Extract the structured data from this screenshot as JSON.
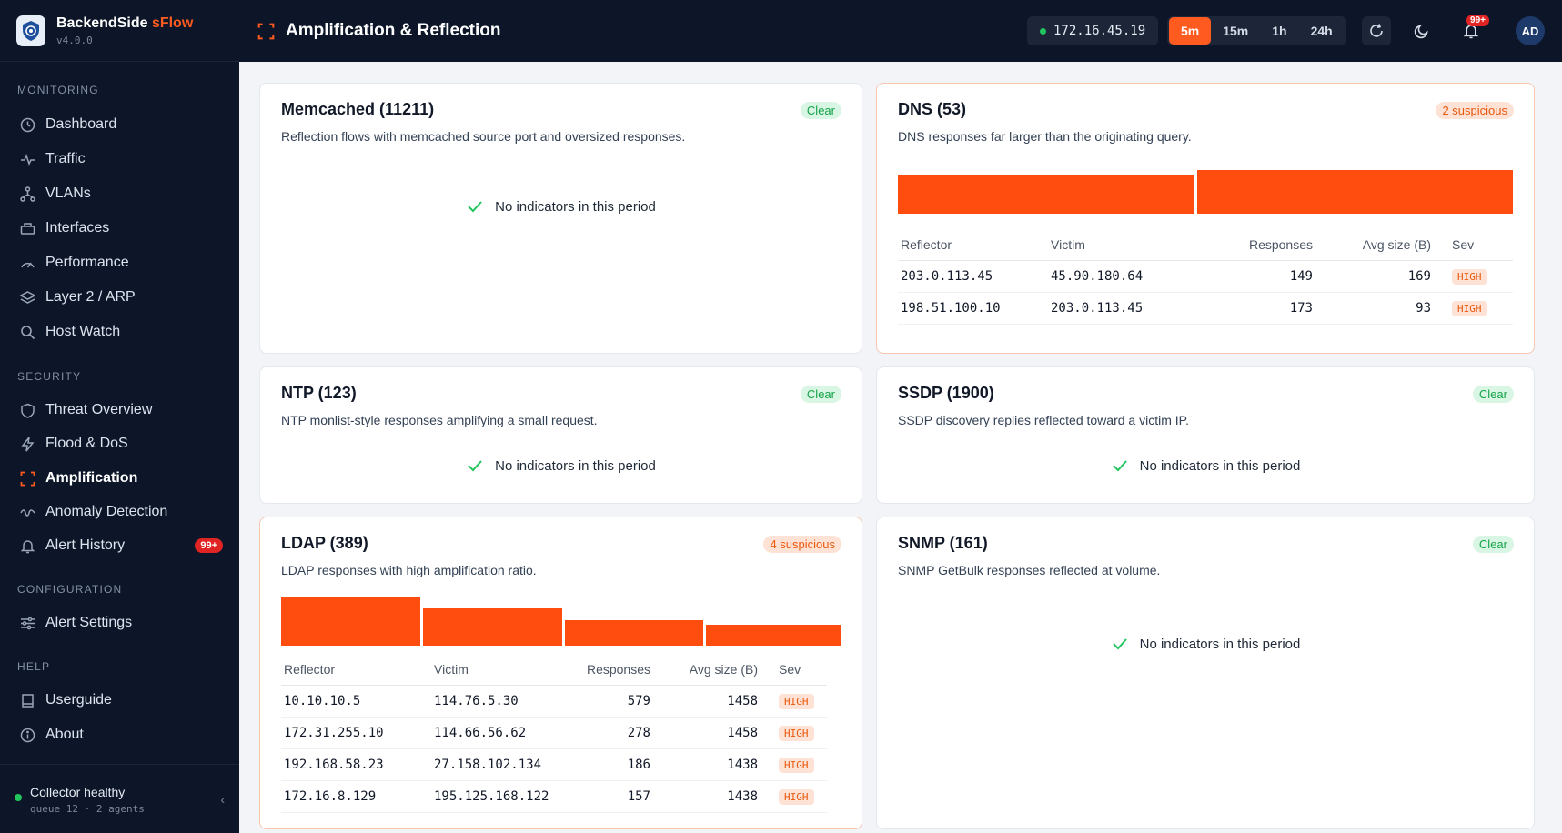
{
  "brand": {
    "name": "BackendSide",
    "accent": "sFlow",
    "version": "v4.0.0"
  },
  "sections": {
    "monitoring": "MONITORING",
    "security": "SECURITY",
    "configuration": "CONFIGURATION",
    "help": "HELP"
  },
  "nav": {
    "dashboard": "Dashboard",
    "traffic": "Traffic",
    "vlans": "VLANs",
    "interfaces": "Interfaces",
    "performance": "Performance",
    "layer2": "Layer 2 / ARP",
    "hostwatch": "Host Watch",
    "threat": "Threat Overview",
    "flood": "Flood & DoS",
    "amplification": "Amplification",
    "anomaly": "Anomaly Detection",
    "alerthistory": "Alert History",
    "alerthistory_badge": "99+",
    "alertsettings": "Alert Settings",
    "userguide": "Userguide",
    "about": "About"
  },
  "footer": {
    "title": "Collector healthy",
    "sub": "queue 12 · 2 agents"
  },
  "header": {
    "title": "Amplification & Reflection",
    "ip": "172.16.45.19",
    "ranges": [
      "5m",
      "15m",
      "1h",
      "24h"
    ],
    "active_range": "5m",
    "notif_badge": "99+",
    "avatar": "AD"
  },
  "empty_text": "No indicators in this period",
  "table_headers": {
    "reflector": "Reflector",
    "victim": "Victim",
    "responses": "Responses",
    "avg": "Avg size (B)",
    "sev": "Sev"
  },
  "cards": {
    "memcached": {
      "title": "Memcached (11211)",
      "desc": "Reflection flows with memcached source port and oversized responses.",
      "badge": "Clear"
    },
    "dns": {
      "title": "DNS (53)",
      "desc": "DNS responses far larger than the originating query.",
      "badge": "2 suspicious",
      "rows": [
        {
          "reflector": "203.0.113.45",
          "victim": "45.90.180.64",
          "responses": "149",
          "avg": "169",
          "sev": "HIGH"
        },
        {
          "reflector": "198.51.100.10",
          "victim": "203.0.113.45",
          "responses": "173",
          "avg": "93",
          "sev": "HIGH"
        }
      ]
    },
    "ntp": {
      "title": "NTP (123)",
      "desc": "NTP monlist-style responses amplifying a small request.",
      "badge": "Clear"
    },
    "ssdp": {
      "title": "SSDP (1900)",
      "desc": "SSDP discovery replies reflected toward a victim IP.",
      "badge": "Clear"
    },
    "ldap": {
      "title": "LDAP (389)",
      "desc": "LDAP responses with high amplification ratio.",
      "badge": "4 suspicious",
      "rows": [
        {
          "reflector": "10.10.10.5",
          "victim": "114.76.5.30",
          "responses": "579",
          "avg": "1458",
          "sev": "HIGH"
        },
        {
          "reflector": "172.31.255.10",
          "victim": "114.66.56.62",
          "responses": "278",
          "avg": "1458",
          "sev": "HIGH"
        },
        {
          "reflector": "192.168.58.23",
          "victim": "27.158.102.134",
          "responses": "186",
          "avg": "1438",
          "sev": "HIGH"
        },
        {
          "reflector": "172.16.8.129",
          "victim": "195.125.168.122",
          "responses": "157",
          "avg": "1438",
          "sev": "HIGH"
        }
      ]
    },
    "snmp": {
      "title": "SNMP (161)",
      "desc": "SNMP GetBulk responses reflected at volume.",
      "badge": "Clear"
    }
  },
  "colors": {
    "accent": "#ff5a1f",
    "bar": "#ff4d0f",
    "ok": "#22c55e",
    "sidebar": "#0c1628"
  }
}
